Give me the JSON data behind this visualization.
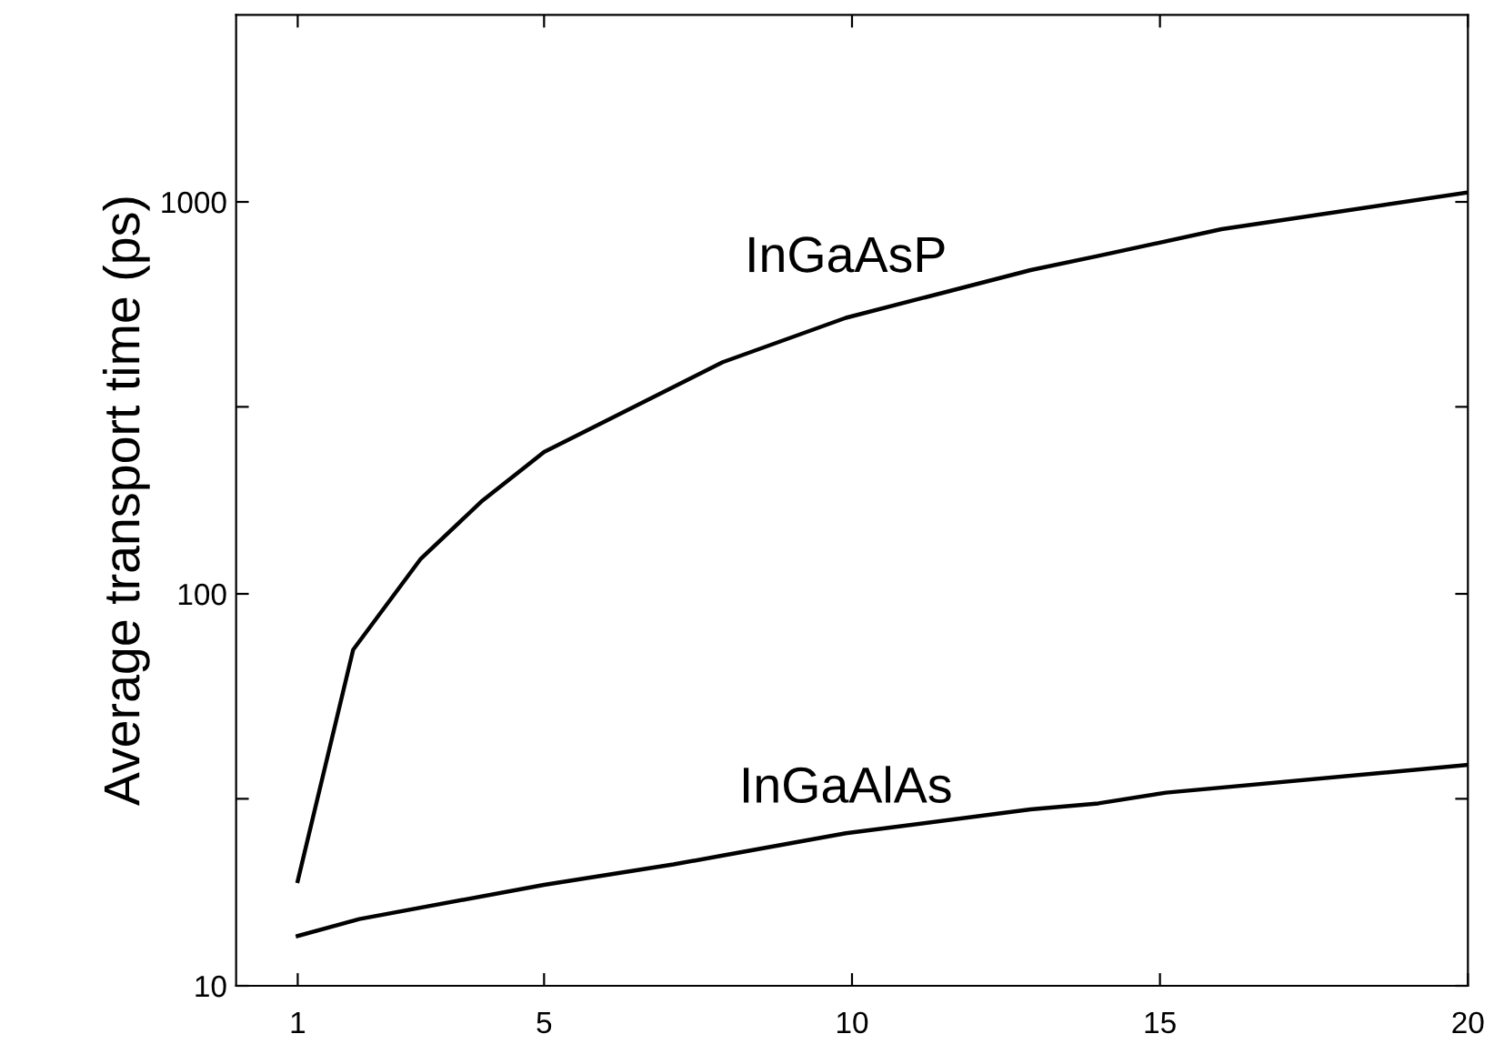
{
  "chart_data": {
    "type": "line",
    "ylabel": "Average transport time (ps)",
    "log": "y",
    "xlim": [
      0,
      20
    ],
    "xticks": [
      1,
      5,
      10,
      15,
      20
    ],
    "ylim": [
      10,
      3000
    ],
    "yticks": [
      10,
      {
        "value": 30,
        "label": null
      },
      100,
      {
        "value": 300,
        "label": null
      },
      1000
    ],
    "grid": false,
    "legend": false,
    "marker": "none",
    "line_style": "solid",
    "series": [
      {
        "name": "InGaAsP",
        "color": "#000000",
        "x": [
          1,
          1.9,
          3,
          4,
          5,
          6,
          7.9,
          9.9,
          12.9,
          14,
          16,
          20
        ],
        "values": [
          18.5,
          72,
          123,
          173,
          230,
          276,
          390,
          506,
          670,
          728,
          852,
          1057
        ]
      },
      {
        "name": "InGaAlAs",
        "color": "#000000",
        "x": [
          1,
          2,
          5,
          7.1,
          7.9,
          9.9,
          12.9,
          14,
          15.1,
          20
        ],
        "values": [
          13.4,
          14.8,
          18.1,
          20.4,
          21.5,
          24.5,
          28.2,
          29.2,
          31.1,
          36.6
        ]
      }
    ]
  }
}
